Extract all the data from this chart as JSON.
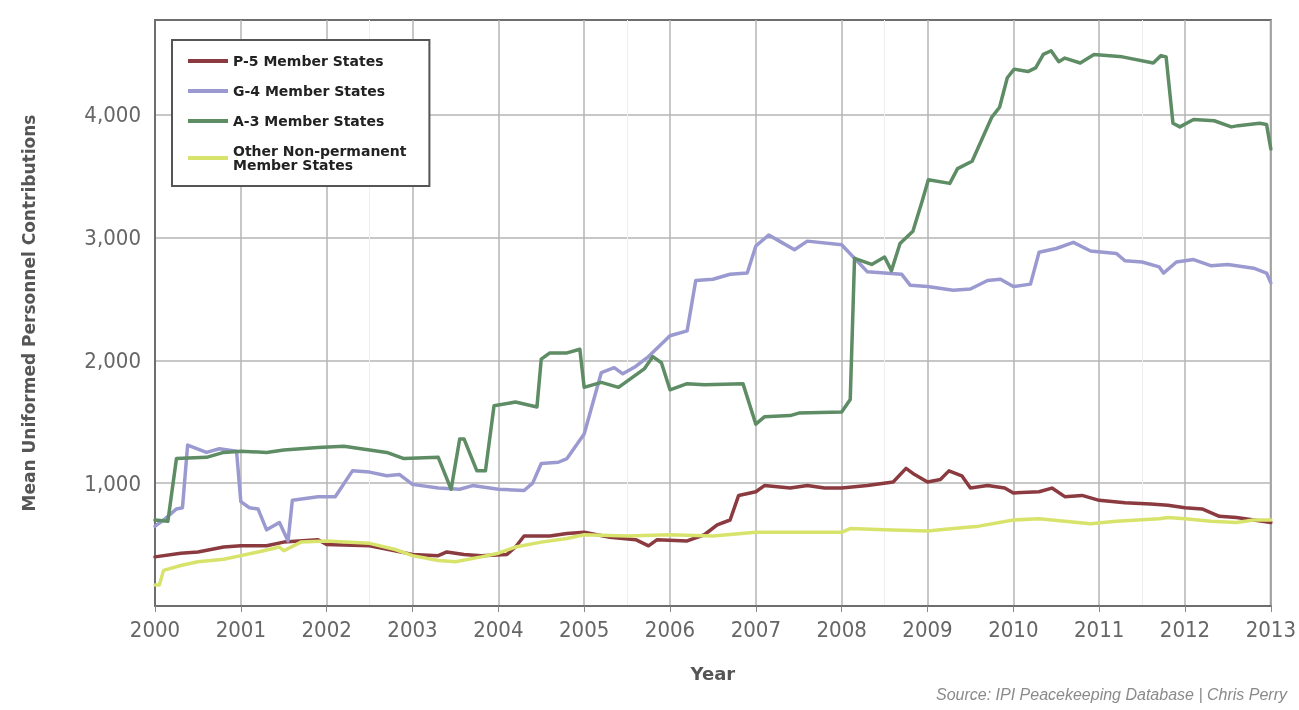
{
  "chart_data": {
    "type": "line",
    "xlabel": "Year",
    "ylabel": "Mean Uniformed Personnel Contributions",
    "xlim": [
      2000,
      2013
    ],
    "xticks": [
      2000,
      2001,
      2002,
      2003,
      2004,
      2005,
      2006,
      2007,
      2008,
      2009,
      2010,
      2011,
      2012,
      2013
    ],
    "ylim": [
      0,
      4770
    ],
    "yticks": [
      {
        "value": 1000,
        "label": "1,000"
      },
      {
        "value": 2000,
        "label": "2,000"
      },
      {
        "value": 3000,
        "label": "3,000"
      },
      {
        "value": 4000,
        "label": "4,000"
      }
    ],
    "grid": true,
    "legend": "top left",
    "line_style": "solid",
    "annotations": [
      "Source: IPI Peacekeeping Database | Chris Perry"
    ],
    "series": [
      {
        "name": "P-5 Member States",
        "color": "#8b3a3f",
        "x": [
          2000.0,
          2000.3,
          2000.5,
          2000.8,
          2001.0,
          2001.3,
          2001.5,
          2001.9,
          2002.0,
          2002.5,
          2003.0,
          2003.3,
          2003.4,
          2003.6,
          2003.8,
          2004.1,
          2004.2,
          2004.3,
          2004.6,
          2004.8,
          2005.0,
          2005.3,
          2005.6,
          2005.75,
          2005.85,
          2006.2,
          2006.4,
          2006.55,
          2006.7,
          2006.8,
          2007.0,
          2007.1,
          2007.4,
          2007.6,
          2007.8,
          2008.0,
          2008.3,
          2008.6,
          2008.75,
          2008.85,
          2009.0,
          2009.15,
          2009.25,
          2009.4,
          2009.5,
          2009.7,
          2009.9,
          2010.0,
          2010.3,
          2010.45,
          2010.6,
          2010.8,
          2011.0,
          2011.3,
          2011.6,
          2011.8,
          2012.0,
          2012.2,
          2012.4,
          2012.6,
          2012.8,
          2013.0
        ],
        "values": [
          400,
          430,
          440,
          480,
          490,
          490,
          520,
          540,
          500,
          490,
          420,
          410,
          440,
          420,
          410,
          420,
          480,
          570,
          570,
          590,
          600,
          560,
          540,
          490,
          540,
          530,
          580,
          660,
          700,
          900,
          930,
          980,
          960,
          980,
          960,
          960,
          980,
          1010,
          1120,
          1070,
          1010,
          1030,
          1100,
          1060,
          960,
          980,
          960,
          920,
          930,
          960,
          890,
          900,
          860,
          840,
          830,
          820,
          800,
          790,
          730,
          720,
          700,
          680
        ]
      },
      {
        "name": "G-4 Member States",
        "color": "#9a9ad0",
        "x": [
          2000.0,
          2000.1,
          2000.25,
          2000.32,
          2000.38,
          2000.6,
          2000.75,
          2000.95,
          2001.0,
          2001.1,
          2001.2,
          2001.3,
          2001.45,
          2001.55,
          2001.6,
          2001.9,
          2002.1,
          2002.3,
          2002.5,
          2002.7,
          2002.85,
          2003.0,
          2003.3,
          2003.55,
          2003.7,
          2004.0,
          2004.3,
          2004.4,
          2004.5,
          2004.7,
          2004.8,
          2005.0,
          2005.2,
          2005.35,
          2005.45,
          2005.6,
          2005.75,
          2006.0,
          2006.2,
          2006.3,
          2006.5,
          2006.7,
          2006.9,
          2007.0,
          2007.15,
          2007.3,
          2007.45,
          2007.6,
          2008.0,
          2008.15,
          2008.3,
          2008.5,
          2008.7,
          2008.8,
          2009.0,
          2009.3,
          2009.5,
          2009.7,
          2009.85,
          2010.0,
          2010.2,
          2010.3,
          2010.5,
          2010.7,
          2010.9,
          2011.2,
          2011.3,
          2011.5,
          2011.7,
          2011.75,
          2011.9,
          2012.1,
          2012.3,
          2012.5,
          2012.8,
          2012.95,
          2013.0
        ],
        "values": [
          650,
          700,
          790,
          800,
          1310,
          1250,
          1280,
          1260,
          850,
          800,
          790,
          620,
          680,
          530,
          860,
          890,
          890,
          1100,
          1090,
          1060,
          1070,
          990,
          960,
          950,
          980,
          950,
          940,
          1000,
          1160,
          1170,
          1200,
          1400,
          1900,
          1940,
          1890,
          1950,
          2030,
          2200,
          2240,
          2650,
          2660,
          2700,
          2710,
          2930,
          3020,
          2960,
          2900,
          2970,
          2940,
          2830,
          2720,
          2710,
          2700,
          2610,
          2600,
          2570,
          2580,
          2650,
          2660,
          2600,
          2620,
          2880,
          2910,
          2960,
          2890,
          2870,
          2810,
          2800,
          2760,
          2710,
          2800,
          2820,
          2770,
          2780,
          2750,
          2710,
          2630
        ]
      },
      {
        "name": "A-3 Member States",
        "color": "#5e8c64",
        "x": [
          2000.0,
          2000.15,
          2000.25,
          2000.6,
          2000.8,
          2001.0,
          2001.3,
          2001.5,
          2001.9,
          2002.2,
          2002.7,
          2002.9,
          2003.3,
          2003.45,
          2003.55,
          2003.6,
          2003.75,
          2003.85,
          2003.95,
          2004.2,
          2004.45,
          2004.5,
          2004.6,
          2004.8,
          2004.95,
          2005.0,
          2005.2,
          2005.4,
          2005.7,
          2005.8,
          2005.9,
          2006.0,
          2006.2,
          2006.4,
          2006.85,
          2007.0,
          2007.1,
          2007.4,
          2007.5,
          2008.0,
          2008.1,
          2008.15,
          2008.35,
          2008.5,
          2008.58,
          2008.68,
          2008.83,
          2008.94,
          2009.01,
          2009.26,
          2009.35,
          2009.52,
          2009.75,
          2009.84,
          2009.93,
          2010.01,
          2010.17,
          2010.26,
          2010.35,
          2010.44,
          2010.53,
          2010.6,
          2010.78,
          2010.94,
          2011.27,
          2011.63,
          2011.72,
          2011.78,
          2011.86,
          2011.94,
          2012.1,
          2012.34,
          2012.54,
          2012.62,
          2012.87,
          2012.95,
          2013.0
        ],
        "values": [
          700,
          690,
          1200,
          1210,
          1250,
          1260,
          1250,
          1270,
          1290,
          1300,
          1250,
          1200,
          1210,
          950,
          1360,
          1360,
          1100,
          1100,
          1630,
          1660,
          1620,
          2010,
          2060,
          2060,
          2090,
          1780,
          1820,
          1780,
          1930,
          2030,
          1980,
          1760,
          1810,
          1800,
          1810,
          1480,
          1540,
          1550,
          1570,
          1580,
          1680,
          2830,
          2780,
          2840,
          2730,
          2950,
          3050,
          3300,
          3470,
          3440,
          3560,
          3620,
          3980,
          4060,
          4300,
          4370,
          4350,
          4380,
          4490,
          4520,
          4430,
          4460,
          4420,
          4490,
          4470,
          4420,
          4480,
          4470,
          3930,
          3900,
          3960,
          3950,
          3900,
          3910,
          3930,
          3920,
          3720
        ]
      },
      {
        "name": "Other Non-permanent Member States",
        "color": "#d8e36b",
        "x": [
          2000.0,
          2000.05,
          2000.1,
          2000.3,
          2000.5,
          2000.8,
          2001.0,
          2001.2,
          2001.45,
          2001.5,
          2001.7,
          2002.0,
          2002.5,
          2002.8,
          2003.0,
          2003.3,
          2003.5,
          2003.8,
          2004.0,
          2004.2,
          2004.5,
          2004.8,
          2005.0,
          2005.5,
          2006.0,
          2006.5,
          2007.0,
          2007.5,
          2008.0,
          2008.1,
          2008.5,
          2009.0,
          2009.3,
          2009.6,
          2010.0,
          2010.3,
          2010.6,
          2010.9,
          2011.2,
          2011.7,
          2011.8,
          2012.0,
          2012.3,
          2012.6,
          2012.8,
          2013.0
        ],
        "values": [
          170,
          170,
          290,
          330,
          360,
          380,
          410,
          440,
          480,
          450,
          520,
          530,
          510,
          460,
          410,
          370,
          360,
          400,
          430,
          480,
          520,
          550,
          580,
          570,
          580,
          570,
          600,
          600,
          600,
          630,
          620,
          610,
          630,
          650,
          700,
          710,
          690,
          670,
          690,
          710,
          720,
          710,
          690,
          680,
          700,
          700
        ]
      }
    ]
  }
}
